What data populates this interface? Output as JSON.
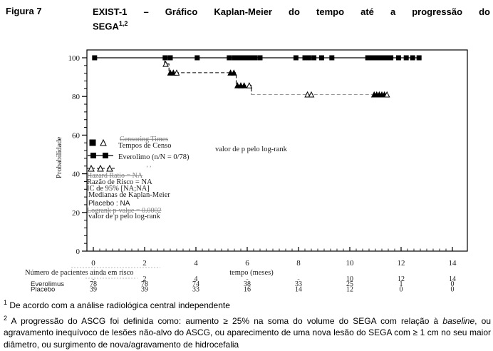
{
  "header": {
    "figure_label": "Figura 7",
    "title_line1": "EXIST-1 – Gráfico Kaplan-Meier do tempo até a progressão do",
    "title_line2": "SEGA",
    "title_superscript": "1,2"
  },
  "chart_data": {
    "type": "line",
    "subtype": "kaplan-meier",
    "title": "",
    "xlabel": "tempo (meses)",
    "ylabel": "Probabilidade",
    "xlim": [
      0,
      14
    ],
    "ylim": [
      0,
      100
    ],
    "x_ticks": [
      0,
      2,
      4,
      6,
      8,
      10,
      12,
      14
    ],
    "y_ticks": [
      0,
      20,
      40,
      60,
      80,
      100
    ],
    "x_minor_step": 0.25,
    "y_minor_step": 4,
    "grid": false,
    "series": [
      {
        "name": "Everolimo",
        "line": "solid",
        "color": "#000000",
        "marker": "square-filled",
        "points": [
          [
            0,
            100
          ],
          [
            12.7,
            100
          ]
        ],
        "censor_marks": [
          [
            0.05,
            100
          ],
          [
            2.8,
            100
          ],
          [
            3.0,
            100
          ],
          [
            4.05,
            100
          ],
          [
            5.3,
            100
          ],
          [
            5.5,
            100
          ],
          [
            5.65,
            100
          ],
          [
            5.8,
            100
          ],
          [
            5.95,
            100
          ],
          [
            6.05,
            100
          ],
          [
            6.15,
            100
          ],
          [
            6.3,
            100
          ],
          [
            6.5,
            100
          ],
          [
            7.9,
            100
          ],
          [
            8.25,
            100
          ],
          [
            8.4,
            100
          ],
          [
            8.6,
            100
          ],
          [
            8.9,
            100
          ],
          [
            9.3,
            100
          ],
          [
            10.7,
            100
          ],
          [
            10.85,
            100
          ],
          [
            11.0,
            100
          ],
          [
            11.1,
            100
          ],
          [
            11.2,
            100
          ],
          [
            11.3,
            100
          ],
          [
            11.45,
            100
          ],
          [
            11.6,
            100
          ],
          [
            11.9,
            100
          ],
          [
            12.2,
            100
          ],
          [
            12.45,
            100
          ],
          [
            12.7,
            100
          ]
        ]
      },
      {
        "name": "Placebo",
        "line": "dashed",
        "color": "#000000",
        "tail_color": "#999999",
        "tail_from_x": 6.16,
        "marker": "triangle-open",
        "points": [
          [
            0,
            100
          ],
          [
            2.78,
            100
          ],
          [
            2.78,
            96.8
          ],
          [
            2.95,
            96.8
          ],
          [
            2.95,
            92.3
          ],
          [
            5.57,
            92.3
          ],
          [
            5.57,
            85.7
          ],
          [
            6.16,
            85.7
          ],
          [
            6.16,
            81
          ],
          [
            11.45,
            81
          ]
        ],
        "censor_marks": [
          [
            2.82,
            96.8
          ],
          [
            3.0,
            92.3
          ],
          [
            3.12,
            92.3
          ],
          [
            3.25,
            92.3
          ],
          [
            5.35,
            92.3
          ],
          [
            5.48,
            92.3
          ],
          [
            5.62,
            85.7
          ],
          [
            5.75,
            85.7
          ],
          [
            5.88,
            85.7
          ],
          [
            6.08,
            85.7
          ],
          [
            8.35,
            81
          ],
          [
            8.5,
            81
          ],
          [
            10.95,
            81
          ],
          [
            11.05,
            81
          ],
          [
            11.15,
            81
          ],
          [
            11.25,
            81
          ],
          [
            11.35,
            81
          ],
          [
            11.45,
            81
          ]
        ],
        "censor_filled": [
          false,
          true,
          true,
          false,
          true,
          true,
          true,
          true,
          true,
          false,
          false,
          false,
          true,
          true,
          true,
          true,
          true,
          false
        ]
      }
    ],
    "legend": {
      "row1_remnant": "Censoring Times",
      "row1_label": "Tempos de Censo",
      "row2_label": "Everolimo (n/N = 0/78)",
      "row3_remnant_marks": "’        ’",
      "stats_remnant": "Hazard Ratio = NA",
      "stats_lines": [
        "Razão de Risco = NA",
        "IC de 95% [NA;NA]",
        "Medianas de Kaplan-Meier"
      ],
      "placebo_stat": "Placebo : NA",
      "logrank_remnant": "Logrank p-value = 0.0002",
      "logrank_label": "valor de p pelo log-rank",
      "p_value_note_right": "valor de p pelo log-rank"
    }
  },
  "at_risk_table": {
    "title": "Número de pacientes ainda em risco",
    "time_axis_label": "tempo (meses)",
    "time_row": [
      "-",
      "2",
      "4",
      "-",
      "-",
      "10",
      "12",
      "14"
    ],
    "rows": [
      {
        "label": "Everolimus",
        "values": [
          "78",
          "78",
          "74",
          "38",
          "33",
          "25",
          "1",
          "0"
        ]
      },
      {
        "label": "Placebo",
        "values": [
          "39",
          "39",
          "33",
          "16",
          "14",
          "12",
          "0",
          "0"
        ]
      }
    ]
  },
  "footnotes": [
    {
      "sup": "1",
      "pre": "De acordo com a análise radiológica central independente",
      "italic": "",
      "post": ""
    },
    {
      "sup": "2",
      "pre": "A progressão do ASCG foi definida como: aumento ≥ 25% na soma do volume do SEGA com relação à ",
      "italic": "baseline",
      "post": ", ou agravamento inequívoco de lesões não-alvo do ASCG, ou aparecimento de uma nova lesão do SEGA com ≥ 1 cm no seu maior diâmetro, ou surgimento de nova/agravamento de hidrocefalia"
    }
  ],
  "colors": {
    "curve": "#000000",
    "placebo_tail": "#999999",
    "remnant_text": "#808080",
    "chart_text": "#1a1a1a"
  }
}
